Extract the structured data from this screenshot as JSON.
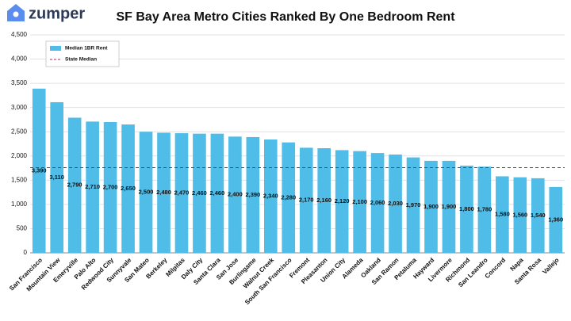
{
  "brand": "zumper",
  "chart_data": {
    "type": "bar",
    "title": "SF Bay Area Metro Cities Ranked By One Bedroom Rent",
    "categories": [
      "San Francisco",
      "Mountain View",
      "Emeryville",
      "Palo Alto",
      "Redwood City",
      "Sunnyvale",
      "San Mateo",
      "Berkeley",
      "Milpitas",
      "Daly City",
      "Santa Clara",
      "San Jose",
      "Burlingame",
      "Walnut Creek",
      "South San Francisco",
      "Fremont",
      "Pleasanton",
      "Union City",
      "Alameda",
      "Oakland",
      "San Ramon",
      "Petaluma",
      "Hayward",
      "Livermore",
      "Richmond",
      "San Leandro",
      "Concord",
      "Napa",
      "Santa Rosa",
      "Vallejo"
    ],
    "series": [
      {
        "name": "Median 1BR Rent",
        "color": "#4fbde8",
        "values": [
          3390,
          3110,
          2790,
          2710,
          2700,
          2650,
          2500,
          2480,
          2470,
          2460,
          2460,
          2400,
          2390,
          2340,
          2280,
          2170,
          2160,
          2120,
          2100,
          2060,
          2030,
          1970,
          1900,
          1900,
          1800,
          1780,
          1580,
          1560,
          1540,
          1360
        ],
        "value_labels": [
          "3,390",
          "3,110",
          "2,790",
          "2,710",
          "2,700",
          "2,650",
          "2,500",
          "2,480",
          "2,470",
          "2,460",
          "2,460",
          "2,400",
          "2,390",
          "2,340",
          "2,280",
          "2,170",
          "2,160",
          "2,120",
          "2,100",
          "2,060",
          "2,030",
          "1,970",
          "1,900",
          "1,900",
          "1,800",
          "1,780",
          "1,580",
          "1,560",
          "1,540",
          "1,360"
        ]
      }
    ],
    "reference_line": {
      "name": "State Median",
      "value": 1760,
      "color": "#c2185b"
    },
    "ylim": [
      0,
      4500
    ],
    "yticks": [
      0,
      500,
      {
        "value": 1000,
        "label": "1,000"
      },
      {
        "value": 1500,
        "label": "1,500"
      },
      {
        "value": 2000,
        "label": "2,000"
      },
      {
        "value": 2500,
        "label": "2,500"
      },
      {
        "value": 3000,
        "label": "3,000"
      },
      {
        "value": 3500,
        "label": "3,500"
      },
      {
        "value": 4000,
        "label": "4,000"
      },
      {
        "value": 4500,
        "label": "4,500"
      }
    ],
    "grid": true
  }
}
